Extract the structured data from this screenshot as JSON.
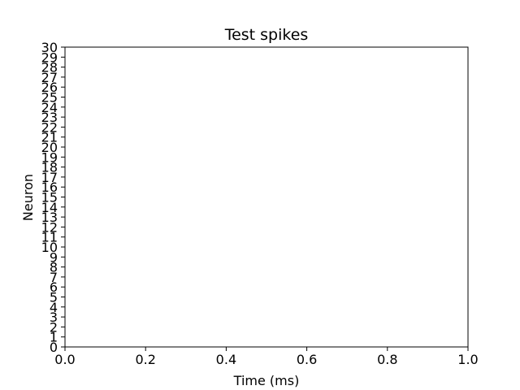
{
  "chart_data": {
    "type": "scatter",
    "title": "Test spikes",
    "xlabel": "Time (ms)",
    "ylabel": "Neuron",
    "xlim": [
      0.0,
      1.0
    ],
    "ylim": [
      0,
      30
    ],
    "xticks": [
      0.0,
      0.2,
      0.4,
      0.6,
      0.8,
      1.0
    ],
    "xtick_labels": [
      "0.0",
      "0.2",
      "0.4",
      "0.6",
      "0.8",
      "1.0"
    ],
    "yticks": [
      0,
      1,
      2,
      3,
      4,
      5,
      6,
      7,
      8,
      9,
      10,
      11,
      12,
      13,
      14,
      15,
      16,
      17,
      18,
      19,
      20,
      21,
      22,
      23,
      24,
      25,
      26,
      27,
      28,
      29,
      30
    ],
    "ytick_labels": [
      "0",
      "1",
      "2",
      "3",
      "4",
      "5",
      "6",
      "7",
      "8",
      "9",
      "10",
      "11",
      "12",
      "13",
      "14",
      "15",
      "16",
      "17",
      "18",
      "19",
      "20",
      "21",
      "22",
      "23",
      "24",
      "25",
      "26",
      "27",
      "28",
      "29",
      "30"
    ],
    "grid": false,
    "series": [
      {
        "x": [],
        "y": []
      }
    ],
    "colors": {
      "axis": "#000000",
      "background": "#ffffff",
      "text": "#000000"
    }
  }
}
